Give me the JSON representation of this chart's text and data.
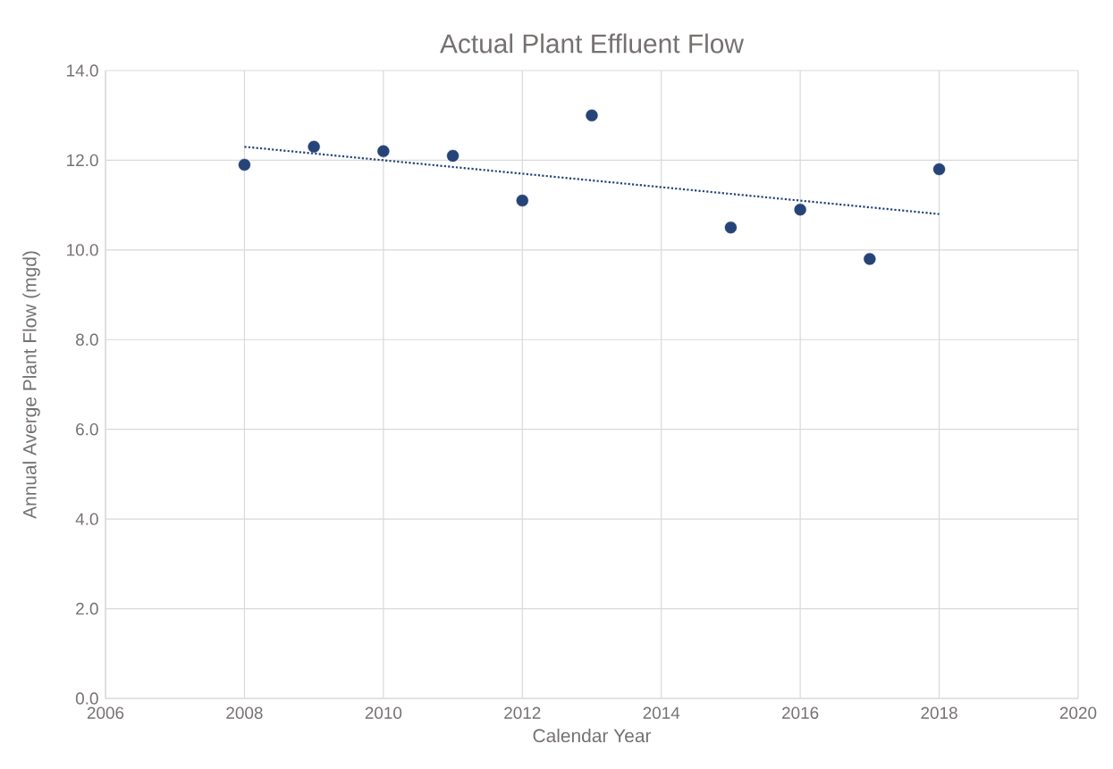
{
  "chart_data": {
    "type": "scatter",
    "title": "Actual Plant Effluent Flow",
    "xlabel": "Calendar Year",
    "ylabel": "Annual Averge Plant Flow (mgd)",
    "x": [
      2008,
      2009,
      2010,
      2011,
      2012,
      2013,
      2015,
      2016,
      2017,
      2018
    ],
    "series": [
      {
        "color": "#264478",
        "marker": "circle",
        "values": [
          11.9,
          12.3,
          12.2,
          12.1,
          11.1,
          13.0,
          10.5,
          10.9,
          9.8,
          11.8
        ]
      },
      {
        "type": "line",
        "color": "#264478",
        "marker": "none",
        "line_style": "dotted",
        "x": [
          2008,
          2018
        ],
        "values": [
          12.3,
          10.8
        ]
      }
    ],
    "xlim": [
      2006,
      2020
    ],
    "xticks": [
      2006,
      2008,
      2010,
      2012,
      2014,
      2016,
      2018,
      2020
    ],
    "ylim": [
      0,
      14
    ],
    "yticks": [
      {
        "value": 0,
        "label": "0.0"
      },
      {
        "value": 2,
        "label": "2.0"
      },
      {
        "value": 4,
        "label": "4.0"
      },
      {
        "value": 6,
        "label": "6.0"
      },
      {
        "value": 8,
        "label": "8.0"
      },
      {
        "value": 10,
        "label": "10.0"
      },
      {
        "value": 12,
        "label": "12.0"
      },
      {
        "value": 14,
        "label": "14.0"
      }
    ],
    "grid": true
  }
}
